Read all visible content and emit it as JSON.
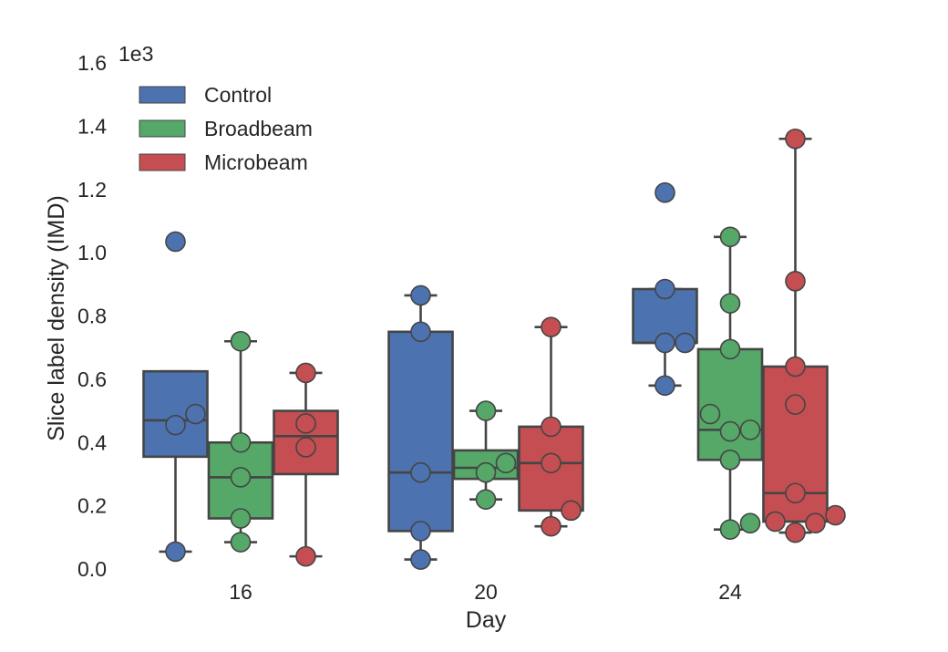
{
  "chart_data": {
    "type": "box",
    "xlabel": "Day",
    "ylabel": "Slice label density (IMD)",
    "offset_text": "1e3",
    "ylim": [
      0.0,
      1.6
    ],
    "yticks": [
      "0.0",
      "0.2",
      "0.4",
      "0.6",
      "0.8",
      "1.0",
      "1.2",
      "1.4",
      "1.6"
    ],
    "categories": [
      "16",
      "20",
      "24"
    ],
    "grid": false,
    "legend_position": "top-left",
    "series": [
      {
        "name": "Control",
        "color": "#4c72b0",
        "boxes": [
          {
            "q1": 0.355,
            "median": 0.47,
            "q3": 0.625,
            "whisker_low": 0.055,
            "whisker_high": 0.625,
            "points": [
              0.055,
              0.455,
              0.49,
              1.035
            ]
          },
          {
            "q1": 0.12,
            "median": 0.305,
            "q3": 0.75,
            "whisker_low": 0.03,
            "whisker_high": 0.865,
            "points": [
              0.03,
              0.12,
              0.305,
              0.75,
              0.865
            ]
          },
          {
            "q1": 0.715,
            "median": 0.715,
            "q3": 0.885,
            "whisker_low": 0.58,
            "whisker_high": 0.885,
            "points": [
              0.58,
              0.715,
              0.715,
              0.885,
              1.19
            ]
          }
        ]
      },
      {
        "name": "Broadbeam",
        "color": "#55a868",
        "boxes": [
          {
            "q1": 0.16,
            "median": 0.29,
            "q3": 0.4,
            "whisker_low": 0.085,
            "whisker_high": 0.72,
            "points": [
              0.085,
              0.16,
              0.29,
              0.4,
              0.72
            ]
          },
          {
            "q1": 0.285,
            "median": 0.32,
            "q3": 0.375,
            "whisker_low": 0.22,
            "whisker_high": 0.5,
            "points": [
              0.22,
              0.305,
              0.335,
              0.5
            ]
          },
          {
            "q1": 0.345,
            "median": 0.44,
            "q3": 0.695,
            "whisker_low": 0.125,
            "whisker_high": 1.05,
            "points": [
              0.125,
              0.145,
              0.345,
              0.435,
              0.44,
              0.49,
              0.695,
              0.84,
              1.05
            ]
          }
        ]
      },
      {
        "name": "Microbeam",
        "color": "#c44e52",
        "boxes": [
          {
            "q1": 0.3,
            "median": 0.42,
            "q3": 0.5,
            "whisker_low": 0.04,
            "whisker_high": 0.62,
            "points": [
              0.04,
              0.385,
              0.46,
              0.62
            ]
          },
          {
            "q1": 0.185,
            "median": 0.335,
            "q3": 0.45,
            "whisker_low": 0.135,
            "whisker_high": 0.765,
            "points": [
              0.135,
              0.185,
              0.335,
              0.45,
              0.765
            ]
          },
          {
            "q1": 0.15,
            "median": 0.24,
            "q3": 0.64,
            "whisker_low": 0.115,
            "whisker_high": 1.36,
            "points": [
              0.115,
              0.145,
              0.15,
              0.17,
              0.24,
              0.52,
              0.64,
              0.91,
              1.36
            ]
          }
        ]
      }
    ]
  }
}
